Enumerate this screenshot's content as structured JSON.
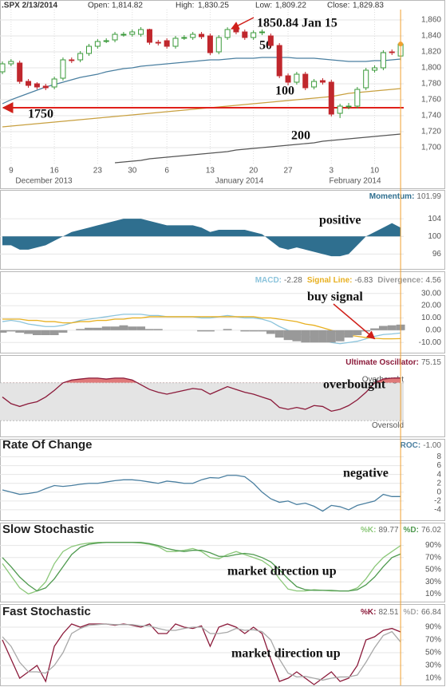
{
  "header": {
    "symbol": ".SPX 2/13/2014",
    "open_label": "Open:",
    "open": "1,814.82",
    "high_label": "High:",
    "high": "1,830.25",
    "low_label": "Low:",
    "low": "1,809.22",
    "close_label": "Close:",
    "close": "1,829.83"
  },
  "chart_data": [
    {
      "type": "candlestick",
      "categories": [
        null,
        "9",
        null,
        null,
        null,
        null,
        "16",
        null,
        null,
        null,
        null,
        "23",
        null,
        null,
        null,
        "30",
        null,
        null,
        null,
        "6",
        null,
        null,
        null,
        null,
        "13",
        null,
        null,
        null,
        null,
        "20",
        null,
        null,
        null,
        "27",
        null,
        null,
        null,
        null,
        "3",
        null,
        null,
        null,
        null,
        "10",
        null,
        null,
        null
      ],
      "month_labels": [
        "December 2013",
        "January 2014",
        "February 2014"
      ],
      "open": [
        1795,
        1805,
        1806,
        1783,
        1780,
        1777,
        1776,
        1787,
        1810,
        1810,
        1818,
        1827,
        1834,
        1835,
        1842,
        1842,
        1842,
        1848,
        1832,
        1834,
        1827,
        1838,
        1838,
        1842,
        1840,
        1820,
        1838,
        1848,
        1845,
        1838,
        1844,
        1840,
        1828,
        1790,
        1782,
        1792,
        1776,
        1784,
        1782,
        1743,
        1752,
        1752,
        1775,
        1797,
        1800,
        1820,
        1814.82
      ],
      "high": [
        1808,
        1811,
        1809,
        1786,
        1782,
        1780,
        1789,
        1813,
        1813,
        1821,
        1830,
        1836,
        1837,
        1845,
        1845,
        1848,
        1851,
        1849,
        1835,
        1837,
        1840,
        1841,
        1845,
        1845,
        1843,
        1841,
        1850.84,
        1850,
        1848,
        1847,
        1848,
        1843,
        1831,
        1793,
        1795,
        1795,
        1786,
        1787,
        1785,
        1755,
        1756,
        1776,
        1800,
        1803,
        1822,
        1823,
        1830.25
      ],
      "low": [
        1792,
        1802,
        1780,
        1775,
        1773,
        1772,
        1773,
        1784,
        1806,
        1807,
        1815,
        1824,
        1831,
        1832,
        1839,
        1839,
        1839,
        1829,
        1828,
        1824,
        1824,
        1835,
        1835,
        1836,
        1816,
        1817,
        1835,
        1842,
        1835,
        1835,
        1841,
        1825,
        1787,
        1778,
        1779,
        1772,
        1773,
        1779,
        1739,
        1737,
        1748,
        1749,
        1772,
        1794,
        1797,
        1816,
        1809.22
      ],
      "close": [
        1805,
        1808,
        1783,
        1778,
        1776,
        1775,
        1786,
        1810,
        1809,
        1818,
        1827,
        1833,
        1834,
        1842,
        1842,
        1845,
        1848,
        1832,
        1831,
        1827,
        1837,
        1838,
        1842,
        1839,
        1819,
        1838,
        1848,
        1845,
        1838,
        1844,
        1845,
        1828,
        1790,
        1782,
        1792,
        1775,
        1783,
        1782,
        1742,
        1752,
        1752,
        1773,
        1797,
        1800,
        1819,
        1819,
        1829.83
      ],
      "up_color": "#3a9a3a",
      "down_color": "#c0272d",
      "series": [
        {
          "name": "50",
          "color": "#4a7fa0",
          "values": [
            1755,
            1760,
            1764,
            1768,
            1772,
            1776,
            1779,
            1782,
            1785,
            1788,
            1790,
            1792,
            1795,
            1797,
            1799,
            1800,
            1802,
            1803,
            1804,
            1805,
            1806,
            1807,
            1808,
            1809,
            1810,
            1810,
            1811,
            1812,
            1812,
            1812,
            1813,
            1813,
            1813,
            1813,
            1812,
            1812,
            1812,
            1811,
            1810,
            1809,
            1808,
            1808,
            1808,
            1809,
            1809,
            1810,
            1811
          ]
        },
        {
          "name": "100",
          "color": "#c8a040",
          "values": [
            1726,
            1727,
            1728,
            1729,
            1730,
            1731,
            1732,
            1733,
            1734,
            1735,
            1736,
            1737,
            1738,
            1739,
            1740,
            1741,
            1742,
            1743,
            1744,
            1745,
            1746,
            1747,
            1748,
            1749,
            1750,
            1751,
            1752,
            1753,
            1754,
            1755,
            1756,
            1757,
            1758,
            1759,
            1760,
            1761,
            1762,
            1763,
            1764,
            1766,
            1768,
            1769,
            1770,
            1771,
            1772,
            1773,
            1774
          ]
        },
        {
          "name": "200",
          "color": "#555555",
          "values": [
            null,
            null,
            null,
            null,
            null,
            null,
            null,
            null,
            null,
            null,
            null,
            null,
            null,
            1681,
            1682,
            1683,
            1684,
            1686,
            1687,
            1688,
            1689,
            1690,
            1691,
            1692,
            1693,
            1694,
            1695,
            1697,
            1698,
            1699,
            1700,
            1701,
            1702,
            1703,
            1704,
            1705,
            1706,
            1708,
            1709,
            1710,
            1711,
            1712,
            1713,
            1714,
            1715,
            1716,
            1717
          ]
        }
      ],
      "hlines": [
        {
          "value": 1750,
          "label": "1750",
          "color": "#e0201a"
        }
      ],
      "annotations": [
        "1850.84 Jan 15"
      ],
      "ylim": [
        1680,
        1873
      ],
      "yticks": [
        {
          "value": 1700,
          "label": "1,700"
        },
        {
          "value": 1720,
          "label": "1,720"
        },
        {
          "value": 1740,
          "label": "1,740"
        },
        {
          "value": 1760,
          "label": "1,760"
        },
        {
          "value": 1780,
          "label": "1,780"
        },
        {
          "value": 1800,
          "label": "1,800"
        },
        {
          "value": 1820,
          "label": "1,820"
        },
        {
          "value": 1840,
          "label": "1,840"
        },
        {
          "value": 1860,
          "label": "1,860"
        }
      ],
      "grid": true
    },
    {
      "type": "area",
      "baseline": 100,
      "series": [
        {
          "name": "Momentum:",
          "color": "#2f6f8f",
          "values": [
            98,
            98,
            97,
            97,
            97.5,
            98,
            99,
            100,
            101,
            101.5,
            102,
            102.5,
            103,
            103.5,
            104,
            104,
            104,
            103.5,
            103,
            102.5,
            102.5,
            102.5,
            102.5,
            102,
            101,
            101.5,
            101.5,
            101.5,
            101.5,
            101,
            100.5,
            99,
            97.5,
            97,
            97.5,
            97,
            96.5,
            96,
            95.5,
            95.5,
            96,
            98,
            100,
            101,
            102,
            103,
            101.99
          ]
        }
      ],
      "annotations": [
        "positive"
      ],
      "ylim": [
        93,
        108
      ],
      "yticks": [
        96,
        100,
        104
      ],
      "grid": true
    },
    {
      "type": "line",
      "series": [
        {
          "name": "MACD:",
          "color": "#8cc4dc",
          "values": [
            7,
            8,
            7,
            5,
            4,
            3,
            3,
            4,
            6,
            8,
            9,
            10,
            11,
            12,
            13,
            13,
            13,
            12,
            12,
            11,
            11,
            11,
            11,
            10,
            10,
            11,
            12,
            11,
            10,
            10,
            9,
            7,
            3,
            0,
            -2,
            -5,
            -6,
            -8,
            -10,
            -11,
            -10,
            -9,
            -7,
            -5,
            -3.5,
            -3,
            -2.28
          ]
        },
        {
          "name": "Signal Line:",
          "color": "#e8b020",
          "values": [
            9,
            9,
            9,
            8,
            8,
            7,
            7,
            6,
            6,
            7,
            7,
            8,
            8,
            9,
            9,
            10,
            10,
            11,
            11,
            11,
            11,
            11,
            11,
            11,
            11,
            11,
            11,
            11,
            11,
            11,
            10,
            10,
            9,
            8,
            7,
            5,
            4,
            2,
            0,
            -2,
            -4,
            -5,
            -6,
            -6.5,
            -7,
            -7,
            -6.83
          ]
        },
        {
          "name": "Divergence:",
          "color": "#999999",
          "kind": "bar",
          "values": [
            -2,
            -1,
            -2,
            -3,
            -4,
            -4,
            -4,
            -2,
            0,
            1,
            2,
            2,
            3,
            3,
            4,
            3,
            3,
            1,
            1,
            0,
            0,
            0,
            0,
            -1,
            -1,
            0,
            1,
            0,
            -1,
            -1,
            -1,
            -3,
            -6,
            -8,
            -9,
            -10,
            -10,
            -10,
            -10,
            -9,
            -6,
            -4,
            -1,
            1.5,
            3.5,
            4,
            4.56
          ]
        }
      ],
      "annotations": [
        "buy signal"
      ],
      "ylim": [
        -17,
        35
      ],
      "yticks": [
        {
          "value": -10,
          "label": "-10.00"
        },
        {
          "value": 0,
          "label": "0.00"
        },
        {
          "value": 10,
          "label": "10.00"
        },
        {
          "value": 20,
          "label": "20.00"
        },
        {
          "value": 30,
          "label": "30.00"
        }
      ],
      "grid": true
    },
    {
      "type": "line",
      "series": [
        {
          "name": "Ultimate Oscillator:",
          "color": "#8b1a3a",
          "values": [
            55,
            48,
            45,
            48,
            50,
            55,
            62,
            70,
            73,
            74,
            75,
            75,
            74,
            75,
            75,
            73,
            68,
            63,
            60,
            58,
            60,
            62,
            64,
            63,
            58,
            62,
            66,
            63,
            60,
            58,
            55,
            52,
            44,
            42,
            44,
            42,
            46,
            45,
            40,
            42,
            46,
            52,
            60,
            70,
            74,
            75,
            75.15
          ]
        }
      ],
      "levels": [
        {
          "value": 70,
          "label": "Overbought"
        },
        {
          "value": 30,
          "label": "Oversold"
        }
      ],
      "annotations": [
        "overbought"
      ],
      "ylim": [
        15,
        85
      ]
    },
    {
      "type": "line",
      "title": "Rate Of Change",
      "series": [
        {
          "name": "ROC:",
          "color": "#4a7fa0",
          "last_label": "-1.00",
          "values": [
            0.5,
            0,
            -0.5,
            -0.3,
            0,
            0.8,
            1.5,
            1.3,
            1.5,
            1.8,
            2,
            2,
            2.3,
            2.6,
            2.8,
            2.8,
            2.6,
            2.3,
            2,
            2.5,
            2.3,
            2,
            2,
            2.8,
            3.3,
            3.2,
            3.8,
            3.8,
            3.5,
            2,
            0,
            -1.5,
            -2.3,
            -2,
            -2.8,
            -2.5,
            -3.2,
            -4.3,
            -3,
            -3.3,
            -4,
            -3,
            -2.5,
            -2,
            -0.5,
            -1,
            -1
          ]
        }
      ],
      "annotations": [
        "negative"
      ],
      "ylim": [
        -6,
        9
      ],
      "yticks": [
        -4,
        -2,
        0,
        2,
        4,
        6,
        8
      ],
      "grid": true
    },
    {
      "type": "line",
      "title": "Slow Stochastic",
      "series": [
        {
          "name": "%K:",
          "color": "#8cc87a",
          "values": [
            60,
            40,
            20,
            10,
            15,
            30,
            60,
            80,
            88,
            92,
            94,
            95,
            95,
            95,
            95,
            95,
            94,
            92,
            88,
            80,
            80,
            82,
            85,
            80,
            70,
            68,
            75,
            80,
            75,
            70,
            65,
            55,
            35,
            18,
            15,
            15,
            17,
            16,
            15,
            15,
            15,
            20,
            35,
            55,
            70,
            80,
            89.77
          ]
        },
        {
          "name": "%D:",
          "color": "#4f9a4f",
          "values": [
            70,
            55,
            38,
            25,
            15,
            20,
            35,
            55,
            75,
            87,
            92,
            94,
            95,
            95,
            95,
            95,
            95,
            93,
            90,
            85,
            82,
            80,
            82,
            82,
            78,
            72,
            72,
            75,
            77,
            75,
            70,
            63,
            50,
            35,
            22,
            17,
            16,
            16,
            16,
            15,
            15,
            17,
            25,
            38,
            55,
            70,
            76.02
          ]
        }
      ],
      "annotations": [
        "market direction up"
      ],
      "ylim": [
        0,
        100
      ],
      "yticks": [
        {
          "value": 10,
          "label": "10%"
        },
        {
          "value": 30,
          "label": "30%"
        },
        {
          "value": 50,
          "label": "50%"
        },
        {
          "value": 70,
          "label": "70%"
        },
        {
          "value": 90,
          "label": "90%"
        }
      ],
      "grid": true
    },
    {
      "type": "line",
      "title": "Fast Stochastic",
      "series": [
        {
          "name": "%K:",
          "color": "#8b1a3a",
          "values": [
            70,
            40,
            10,
            20,
            30,
            5,
            60,
            80,
            95,
            90,
            95,
            95,
            95,
            93,
            95,
            93,
            90,
            95,
            80,
            80,
            95,
            90,
            88,
            92,
            60,
            90,
            95,
            90,
            80,
            90,
            80,
            40,
            5,
            10,
            20,
            10,
            0,
            10,
            20,
            5,
            10,
            30,
            70,
            75,
            85,
            88,
            82.51
          ]
        },
        {
          "name": "%D:",
          "color": "#a8a8a8",
          "values": [
            75,
            60,
            35,
            20,
            20,
            18,
            30,
            50,
            80,
            88,
            93,
            94,
            95,
            94,
            94,
            94,
            92,
            92,
            88,
            85,
            85,
            88,
            90,
            90,
            80,
            80,
            82,
            88,
            85,
            86,
            83,
            70,
            40,
            18,
            12,
            13,
            10,
            7,
            10,
            12,
            12,
            15,
            35,
            58,
            77,
            83,
            66.84
          ]
        }
      ],
      "annotations": [
        "market direction up"
      ],
      "ylim": [
        0,
        100
      ],
      "yticks": [
        {
          "value": 10,
          "label": "10%"
        },
        {
          "value": 30,
          "label": "30%"
        },
        {
          "value": 50,
          "label": "50%"
        },
        {
          "value": 70,
          "label": "70%"
        },
        {
          "value": 90,
          "label": "90%"
        }
      ],
      "grid": true
    }
  ]
}
